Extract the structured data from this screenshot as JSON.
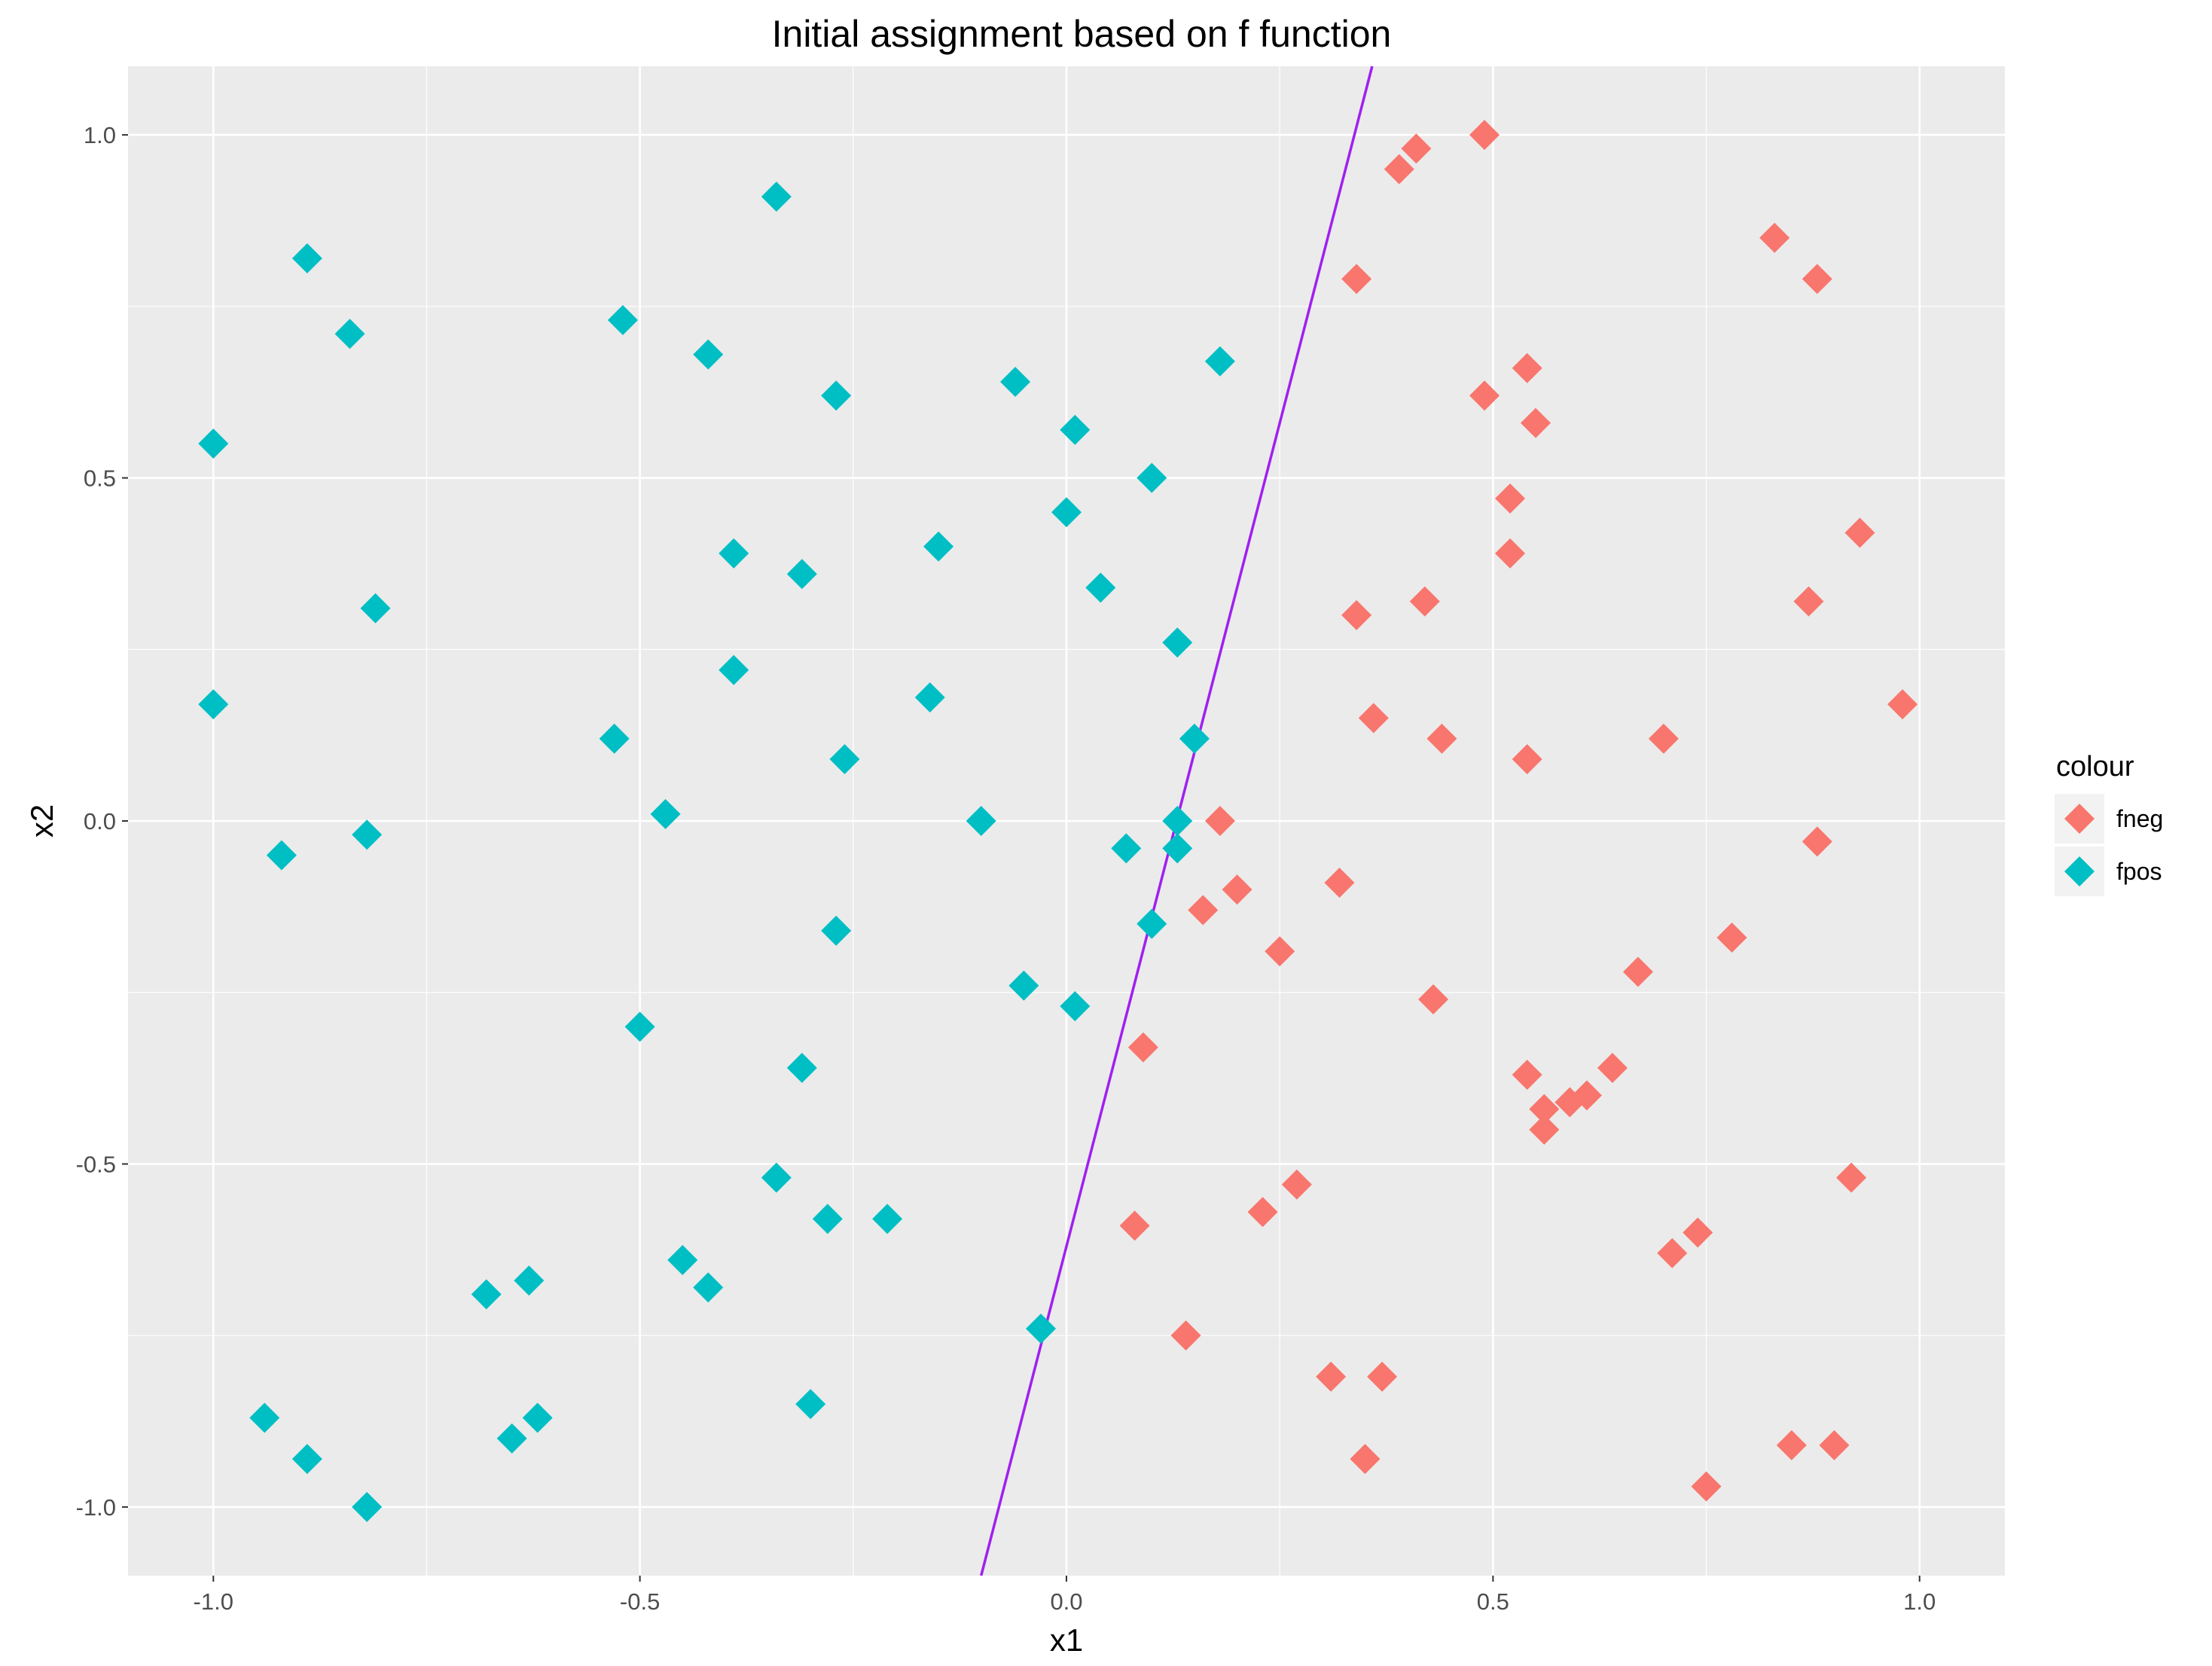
{
  "chart_data": {
    "type": "scatter",
    "title": "Initial assignment based on f function",
    "xlabel": "x1",
    "ylabel": "x2",
    "xlim": [
      -1.1,
      1.1
    ],
    "ylim": [
      -1.1,
      1.1
    ],
    "x_ticks": [
      -1.0,
      -0.5,
      0.0,
      0.5,
      1.0
    ],
    "y_ticks": [
      -1.0,
      -0.5,
      0.0,
      0.5,
      1.0
    ],
    "x_tick_labels": [
      "-1.0",
      "-0.5",
      "0.0",
      "0.5",
      "1.0"
    ],
    "y_tick_labels": [
      "-1.0",
      "-0.5",
      "0.0",
      "0.5",
      "1.0"
    ],
    "grid": true,
    "background": "#ebebeb",
    "legend": {
      "title": "colour",
      "placement": "right",
      "entries": [
        {
          "label": "fneg",
          "color": "#F8766D"
        },
        {
          "label": "fpos",
          "color": "#00BFC4"
        }
      ]
    },
    "marker": "diamond",
    "line": {
      "color": "#a020f0",
      "slope": 4.8,
      "intercept": -0.62
    },
    "series": [
      {
        "name": "fneg",
        "color": "#F8766D",
        "points": [
          [
            0.49,
            1.0
          ],
          [
            0.41,
            0.98
          ],
          [
            0.39,
            0.95
          ],
          [
            0.34,
            0.79
          ],
          [
            0.83,
            0.85
          ],
          [
            0.88,
            0.79
          ],
          [
            0.54,
            0.66
          ],
          [
            0.49,
            0.62
          ],
          [
            0.55,
            0.58
          ],
          [
            0.52,
            0.47
          ],
          [
            0.52,
            0.39
          ],
          [
            0.93,
            0.42
          ],
          [
            0.87,
            0.32
          ],
          [
            0.34,
            0.3
          ],
          [
            0.42,
            0.32
          ],
          [
            0.36,
            0.15
          ],
          [
            0.44,
            0.12
          ],
          [
            0.54,
            0.09
          ],
          [
            0.7,
            0.12
          ],
          [
            0.98,
            0.17
          ],
          [
            0.18,
            0.0
          ],
          [
            0.88,
            -0.03
          ],
          [
            0.2,
            -0.1
          ],
          [
            0.32,
            -0.09
          ],
          [
            0.16,
            -0.13
          ],
          [
            0.25,
            -0.19
          ],
          [
            0.78,
            -0.17
          ],
          [
            0.67,
            -0.22
          ],
          [
            0.43,
            -0.26
          ],
          [
            0.09,
            -0.33
          ],
          [
            0.54,
            -0.37
          ],
          [
            0.56,
            -0.42
          ],
          [
            0.59,
            -0.41
          ],
          [
            0.61,
            -0.4
          ],
          [
            0.64,
            -0.36
          ],
          [
            0.56,
            -0.45
          ],
          [
            0.92,
            -0.52
          ],
          [
            0.27,
            -0.53
          ],
          [
            0.23,
            -0.57
          ],
          [
            0.08,
            -0.59
          ],
          [
            0.74,
            -0.6
          ],
          [
            0.71,
            -0.63
          ],
          [
            0.14,
            -0.75
          ],
          [
            0.31,
            -0.81
          ],
          [
            0.37,
            -0.81
          ],
          [
            0.35,
            -0.93
          ],
          [
            0.85,
            -0.91
          ],
          [
            0.9,
            -0.91
          ],
          [
            0.75,
            -0.97
          ]
        ]
      },
      {
        "name": "fpos",
        "color": "#00BFC4",
        "points": [
          [
            -0.34,
            0.91
          ],
          [
            -0.89,
            0.82
          ],
          [
            -0.84,
            0.71
          ],
          [
            -0.52,
            0.73
          ],
          [
            -0.42,
            0.68
          ],
          [
            -0.27,
            0.62
          ],
          [
            -0.06,
            0.64
          ],
          [
            0.01,
            0.57
          ],
          [
            0.18,
            0.67
          ],
          [
            -1.0,
            0.55
          ],
          [
            0.1,
            0.5
          ],
          [
            0.0,
            0.45
          ],
          [
            -0.39,
            0.39
          ],
          [
            -0.31,
            0.36
          ],
          [
            -0.15,
            0.4
          ],
          [
            0.04,
            0.34
          ],
          [
            -0.81,
            0.31
          ],
          [
            0.13,
            0.26
          ],
          [
            -0.39,
            0.22
          ],
          [
            -0.16,
            0.18
          ],
          [
            -1.0,
            0.17
          ],
          [
            -0.53,
            0.12
          ],
          [
            -0.26,
            0.09
          ],
          [
            0.15,
            0.12
          ],
          [
            -0.47,
            0.01
          ],
          [
            -0.1,
            0.0
          ],
          [
            0.13,
            0.0
          ],
          [
            -0.92,
            -0.05
          ],
          [
            -0.82,
            -0.02
          ],
          [
            0.07,
            -0.04
          ],
          [
            0.13,
            -0.04
          ],
          [
            0.1,
            -0.15
          ],
          [
            -0.27,
            -0.16
          ],
          [
            -0.05,
            -0.24
          ],
          [
            0.01,
            -0.27
          ],
          [
            -0.5,
            -0.3
          ],
          [
            -0.31,
            -0.36
          ],
          [
            -0.34,
            -0.52
          ],
          [
            -0.28,
            -0.58
          ],
          [
            -0.21,
            -0.58
          ],
          [
            -0.45,
            -0.64
          ],
          [
            -0.42,
            -0.68
          ],
          [
            -0.68,
            -0.69
          ],
          [
            -0.63,
            -0.67
          ],
          [
            -0.03,
            -0.74
          ],
          [
            -0.3,
            -0.85
          ],
          [
            -0.94,
            -0.87
          ],
          [
            -0.62,
            -0.87
          ],
          [
            -0.89,
            -0.93
          ],
          [
            -0.65,
            -0.9
          ],
          [
            -0.82,
            -1.0
          ]
        ]
      }
    ]
  }
}
